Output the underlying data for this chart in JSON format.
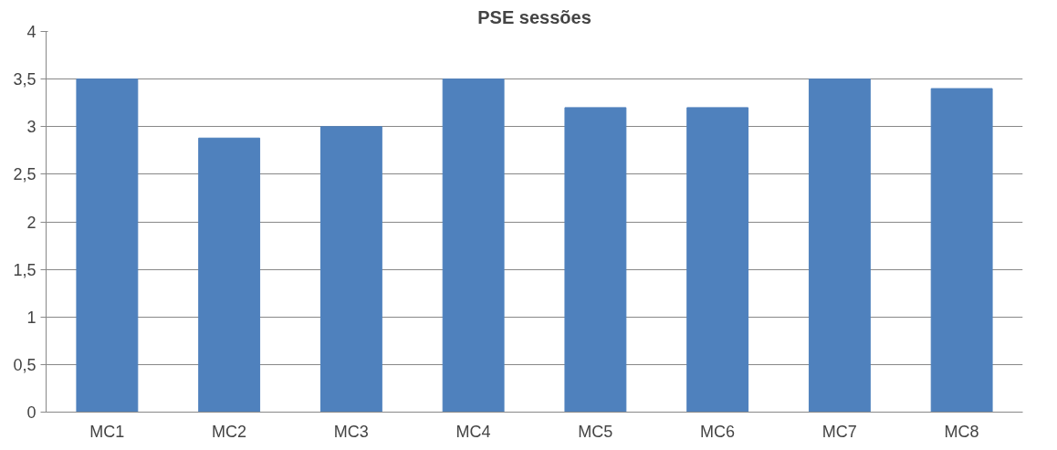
{
  "chart_data": {
    "type": "bar",
    "title": "PSE sessões",
    "categories": [
      "MC1",
      "MC2",
      "MC3",
      "MC4",
      "MC5",
      "MC6",
      "MC7",
      "MC8"
    ],
    "values": [
      3.5,
      2.88,
      3.0,
      3.5,
      3.2,
      3.2,
      3.5,
      3.4
    ],
    "color": "#4f81bd",
    "ylim": [
      0,
      4
    ],
    "yticks": [
      0,
      {
        "value": 0.5,
        "label": "0,5"
      },
      1,
      {
        "value": 1.5,
        "label": "1,5"
      },
      2,
      {
        "value": 2.5,
        "label": "2,5"
      },
      3,
      {
        "value": 3.5,
        "label": "3,5"
      },
      4
    ],
    "grid": "y"
  }
}
